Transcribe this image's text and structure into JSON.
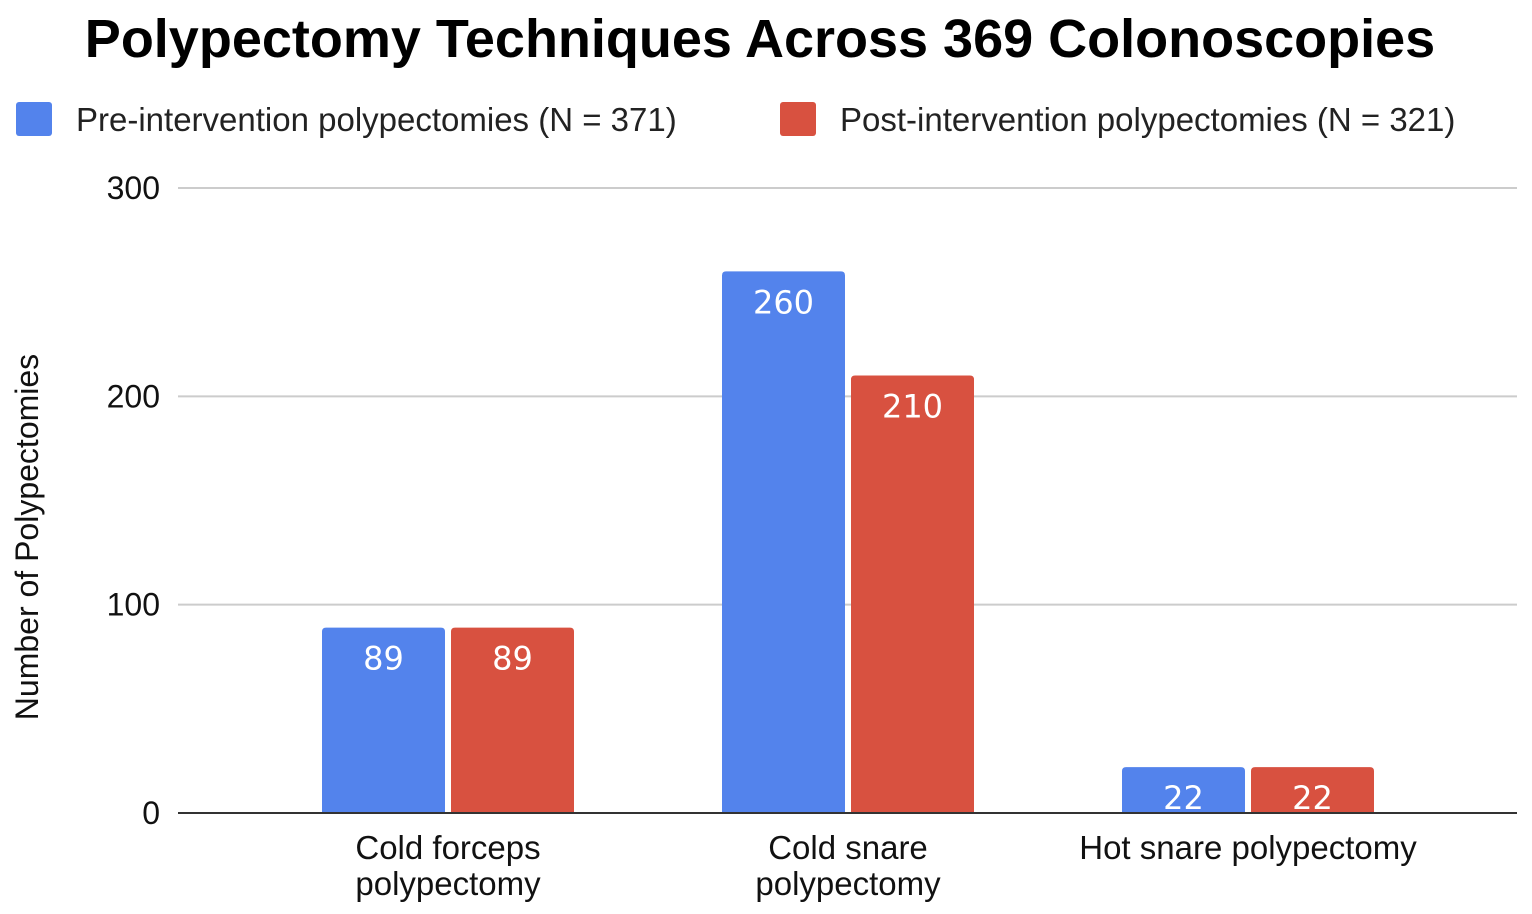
{
  "chart_data": {
    "type": "bar",
    "title": "Polypectomy Techniques Across 369 Colonoscopies",
    "xlabel": "",
    "ylabel": "Number of Polypectomies",
    "ylim": [
      0,
      300
    ],
    "yticks": [
      0,
      100,
      200,
      300
    ],
    "grid": true,
    "legend_position": "top",
    "categories": [
      [
        "Cold forceps",
        "polypectomy"
      ],
      [
        "Cold snare",
        "polypectomy"
      ],
      [
        "Hot snare polypectomy"
      ]
    ],
    "series": [
      {
        "name": "Pre-intervention polypectomies (N = 371)",
        "color": "#5383EC",
        "values": [
          89,
          260,
          22
        ]
      },
      {
        "name": "Post-intervention polypectomies (N = 321)",
        "color": "#D85140",
        "values": [
          89,
          210,
          22
        ]
      }
    ],
    "data_labels": true
  }
}
